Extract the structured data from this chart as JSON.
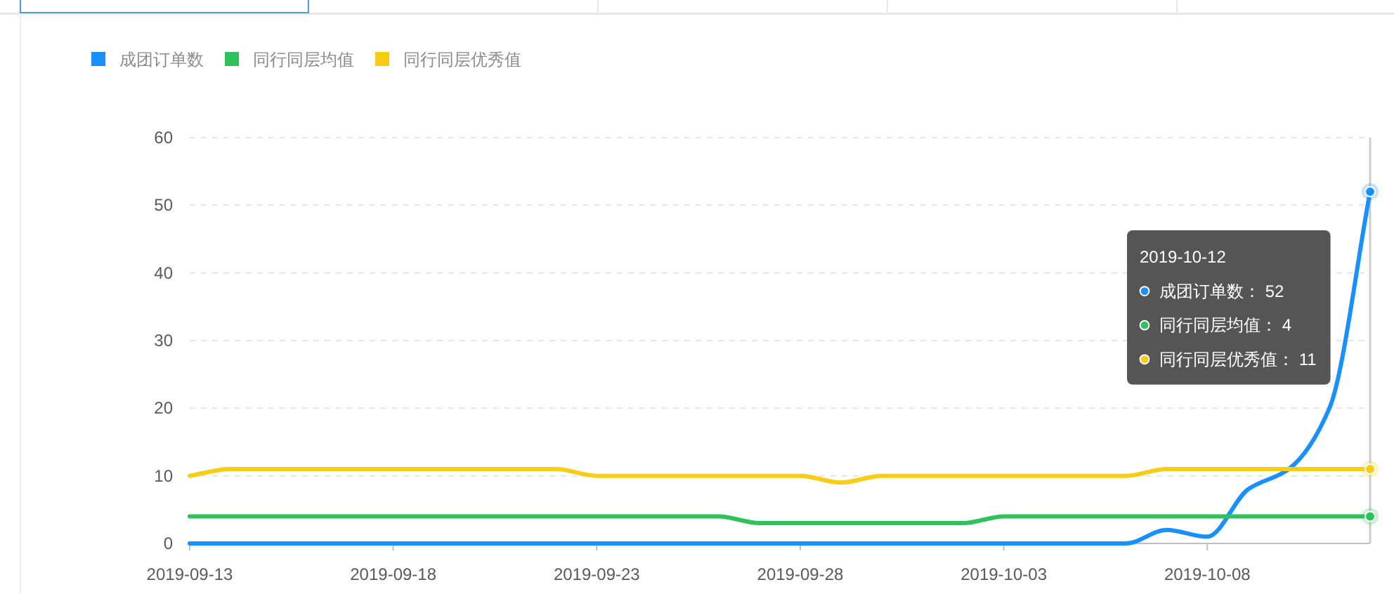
{
  "chart_data": {
    "type": "line",
    "x": [
      "2019-09-13",
      "2019-09-14",
      "2019-09-15",
      "2019-09-16",
      "2019-09-17",
      "2019-09-18",
      "2019-09-19",
      "2019-09-20",
      "2019-09-21",
      "2019-09-22",
      "2019-09-23",
      "2019-09-24",
      "2019-09-25",
      "2019-09-26",
      "2019-09-27",
      "2019-09-28",
      "2019-09-29",
      "2019-09-30",
      "2019-10-01",
      "2019-10-02",
      "2019-10-03",
      "2019-10-04",
      "2019-10-05",
      "2019-10-06",
      "2019-10-07",
      "2019-10-08",
      "2019-10-09",
      "2019-10-10",
      "2019-10-11",
      "2019-10-12"
    ],
    "xlim": [
      "2019-09-13",
      "2019-10-12"
    ],
    "xticks": [
      "2019-09-13",
      "2019-09-18",
      "2019-09-23",
      "2019-09-28",
      "2019-10-03",
      "2019-10-08"
    ],
    "ylim": [
      0,
      60
    ],
    "yticks": [
      0,
      10,
      20,
      30,
      40,
      50,
      60
    ],
    "grid": "y",
    "legend": "top left",
    "series": [
      {
        "name": "成团订单数",
        "color": "#1890ff",
        "values": [
          0,
          0,
          0,
          0,
          0,
          0,
          0,
          0,
          0,
          0,
          0,
          0,
          0,
          0,
          0,
          0,
          0,
          0,
          0,
          0,
          0,
          0,
          0,
          0,
          2,
          1,
          8,
          11,
          20,
          52
        ]
      },
      {
        "name": "同行同层均值",
        "color": "#2fc25b",
        "values": [
          4,
          4,
          4,
          4,
          4,
          4,
          4,
          4,
          4,
          4,
          4,
          4,
          4,
          4,
          3,
          3,
          3,
          3,
          3,
          3,
          4,
          4,
          4,
          4,
          4,
          4,
          4,
          4,
          4,
          4
        ]
      },
      {
        "name": "同行同层优秀值",
        "color": "#facc14",
        "values": [
          10,
          11,
          11,
          11,
          11,
          11,
          11,
          11,
          11,
          11,
          10,
          10,
          10,
          10,
          10,
          10,
          9,
          10,
          10,
          10,
          10,
          10,
          10,
          10,
          11,
          11,
          11,
          11,
          11,
          11
        ]
      }
    ],
    "ref_lines": [
      {
        "axis": "x",
        "value": "2019-10-12",
        "color": "#cccccc"
      }
    ],
    "annotations": [
      "2019-10-12",
      "成团订单数： 52",
      "同行同层均值： 4",
      "同行同层优秀值： 11"
    ]
  }
}
